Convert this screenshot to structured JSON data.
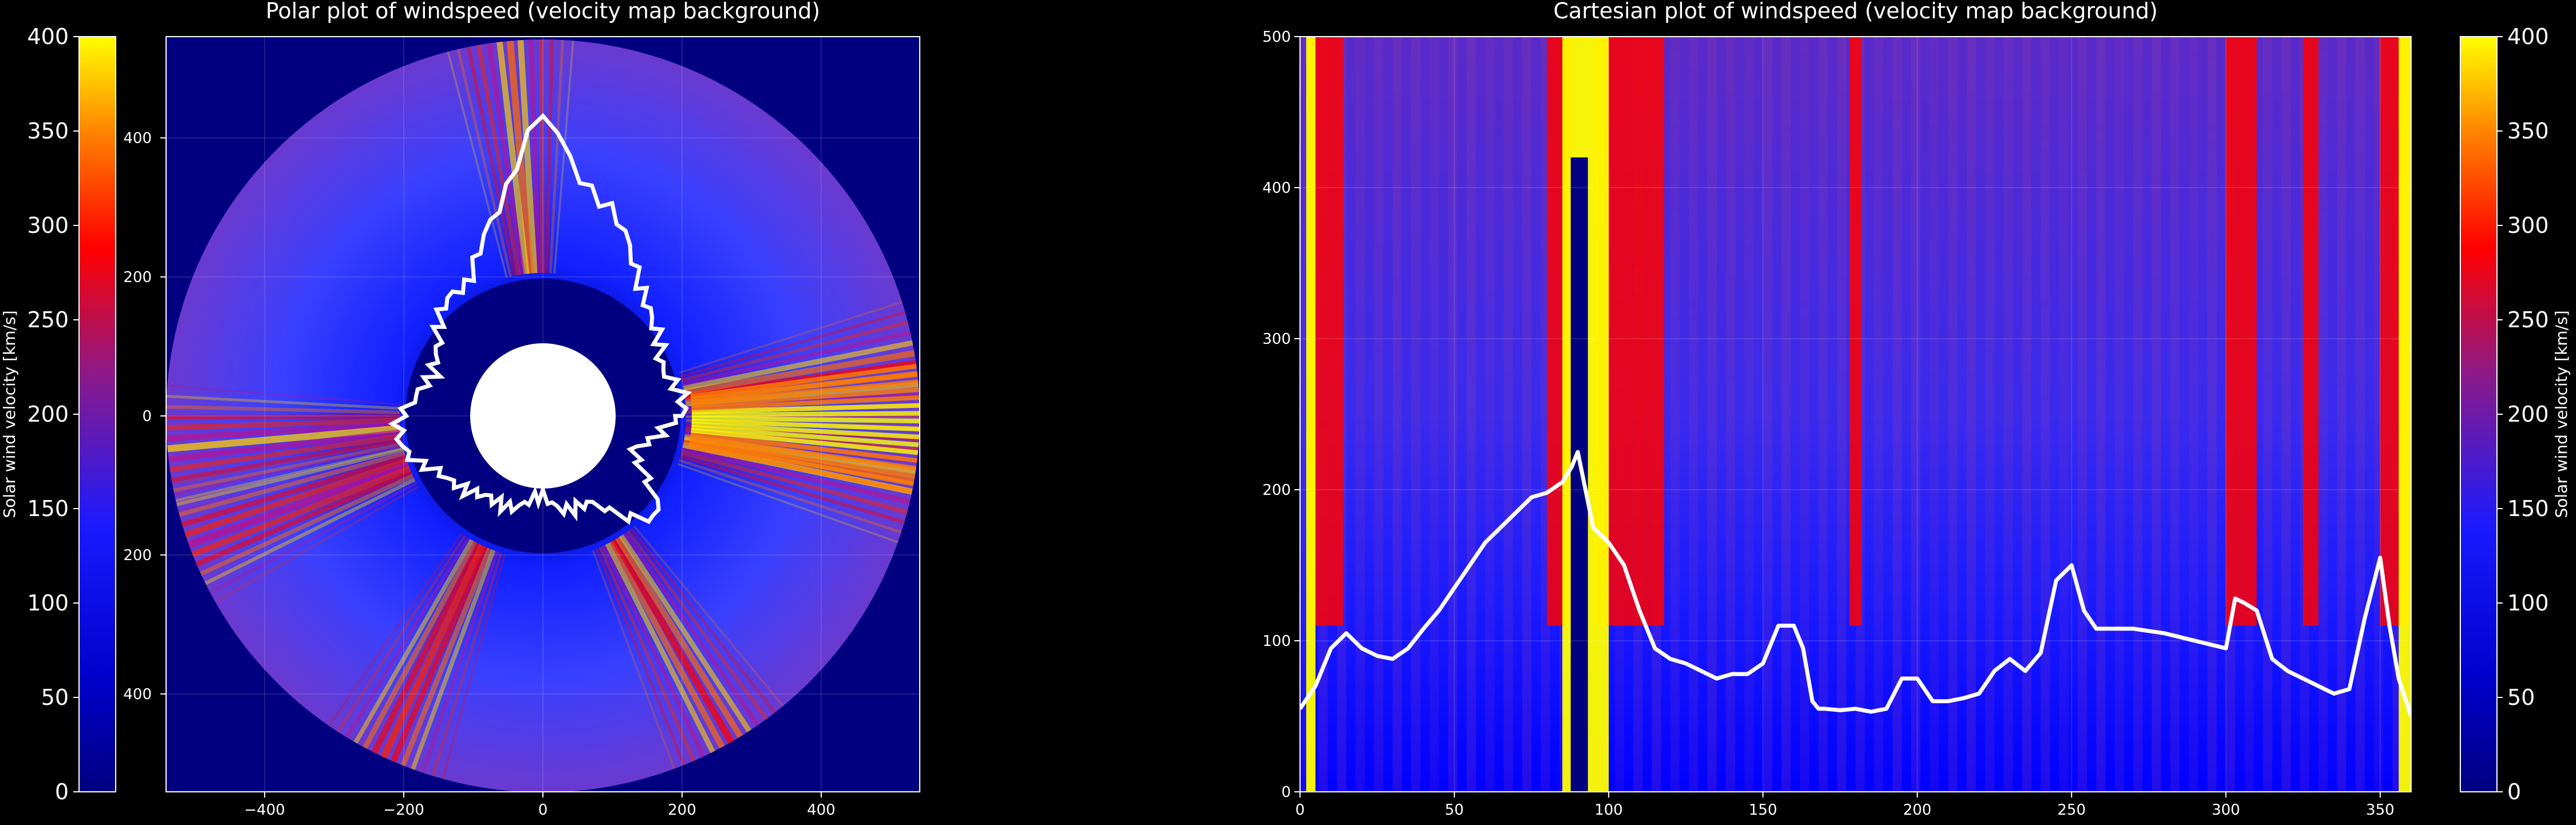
{
  "chart_data": [
    {
      "type": "heatmap",
      "projection": "polar",
      "title": "Polar plot of windspeed (velocity map background)",
      "xticks": [
        -400,
        -200,
        0,
        200,
        400
      ],
      "yticks": [
        400,
        200,
        0,
        200,
        400
      ],
      "xlim": [
        -520,
        520
      ],
      "ylim": [
        -520,
        520
      ],
      "inner_radius": 100,
      "outer_radius": 520,
      "fast_wind_directions_deg": [
        8,
        95,
        185,
        200,
        245,
        300,
        350
      ],
      "contour_radius_by_angle_deg": {
        "angles": [
          0,
          20,
          40,
          60,
          80,
          90,
          100,
          120,
          140,
          160,
          180,
          200,
          220,
          240,
          260,
          270,
          280,
          300,
          320,
          340,
          360
        ],
        "radius": [
          200,
          190,
          200,
          260,
          340,
          440,
          310,
          220,
          200,
          160,
          210,
          195,
          150,
          145,
          125,
          120,
          130,
          150,
          220,
          130,
          200
        ]
      },
      "grid": true
    },
    {
      "type": "heatmap",
      "projection": "cartesian",
      "title": "Cartesian plot of windspeed (velocity map background)",
      "xticks": [
        0,
        50,
        100,
        150,
        200,
        250,
        300,
        350
      ],
      "yticks": [
        0,
        100,
        200,
        300,
        400,
        500
      ],
      "xlim": [
        0,
        360
      ],
      "ylim": [
        0,
        500
      ],
      "contour": {
        "x": [
          0,
          5,
          10,
          15,
          20,
          25,
          30,
          35,
          40,
          45,
          50,
          55,
          60,
          65,
          70,
          75,
          80,
          85,
          88,
          90,
          92,
          95,
          100,
          105,
          110,
          115,
          120,
          125,
          130,
          135,
          140,
          145,
          150,
          155,
          160,
          163,
          166,
          168,
          170,
          175,
          180,
          185,
          190,
          195,
          200,
          205,
          210,
          215,
          220,
          225,
          230,
          235,
          240,
          245,
          250,
          254,
          258,
          262,
          270,
          280,
          290,
          300,
          303,
          306,
          310,
          315,
          320,
          325,
          330,
          335,
          340,
          345,
          350,
          353,
          356,
          360
        ],
        "y": [
          55,
          70,
          95,
          105,
          95,
          90,
          88,
          95,
          108,
          120,
          135,
          150,
          165,
          175,
          185,
          195,
          198,
          205,
          215,
          225,
          205,
          175,
          165,
          150,
          120,
          95,
          88,
          85,
          80,
          75,
          78,
          78,
          85,
          110,
          110,
          95,
          60,
          55,
          55,
          54,
          55,
          53,
          55,
          75,
          75,
          60,
          60,
          62,
          65,
          80,
          88,
          80,
          92,
          140,
          150,
          120,
          108,
          108,
          108,
          105,
          100,
          95,
          128,
          125,
          120,
          88,
          80,
          75,
          70,
          65,
          68,
          115,
          155,
          110,
          75,
          50
        ]
      },
      "red_bands_x": [
        [
          3,
          14
        ],
        [
          80,
          88
        ],
        [
          95,
          118
        ],
        [
          178,
          182
        ],
        [
          300,
          310
        ],
        [
          325,
          330
        ],
        [
          350,
          360
        ]
      ],
      "yellow_bands_x": [
        [
          2,
          5
        ],
        [
          85,
          100
        ],
        [
          356,
          360
        ]
      ],
      "dark_spike": {
        "x": [
          84,
          98
        ],
        "max_y": 420
      },
      "grid": true
    }
  ],
  "colorbars": [
    {
      "ticks": [
        0,
        50,
        100,
        150,
        200,
        250,
        300,
        350,
        400
      ],
      "label": "Solar wind velocity [km/s]",
      "min": 0,
      "max": 400
    },
    {
      "ticks": [
        0,
        50,
        100,
        150,
        200,
        250,
        300,
        350,
        400
      ],
      "label": "Solar wind velocity [km/s]",
      "min": 0,
      "max": 400
    }
  ],
  "colormap": {
    "stops": [
      "#000080",
      "#0000ff",
      "#7a1fa0",
      "#ff0000",
      "#ff8000",
      "#ffff00"
    ]
  }
}
